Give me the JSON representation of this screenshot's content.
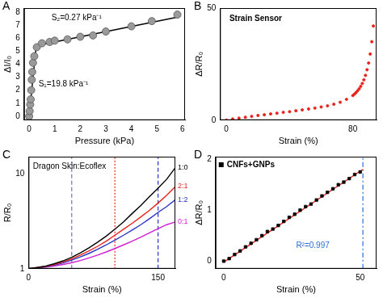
{
  "chart_data": [
    {
      "panel": "A",
      "type": "scatter",
      "x_label": "Pressure (kPa)",
      "y_label": "ΔI/I₀",
      "xlim": [
        -0.2,
        6.1
      ],
      "ylim": [
        -0.3,
        8.3
      ],
      "xticks": [
        0,
        1,
        2,
        3,
        4,
        5,
        6
      ],
      "yticks": [
        0,
        1,
        2,
        3,
        4,
        5,
        6,
        7,
        8
      ],
      "grid": false,
      "series": [
        {
          "type": "scatter",
          "marker": "circle",
          "color": "#9a9a9a",
          "x": [
            0,
            0.02,
            0.04,
            0.06,
            0.08,
            0.1,
            0.12,
            0.15,
            0.2,
            0.3,
            0.5,
            0.8,
            1.0,
            1.5,
            2.0,
            2.5,
            3.0,
            4.0,
            4.8,
            5.8
          ],
          "values": [
            0,
            0.4,
            0.9,
            1.3,
            2.0,
            2.8,
            3.4,
            4.1,
            4.6,
            5.3,
            5.6,
            5.7,
            5.8,
            5.9,
            6.1,
            6.2,
            6.5,
            6.9,
            7.3,
            7.8
          ]
        },
        {
          "type": "line",
          "color": "#000000",
          "line_style": "solid",
          "x": [
            0,
            0.28
          ],
          "values": [
            0,
            5.5
          ]
        },
        {
          "type": "line",
          "color": "#000000",
          "line_style": "solid",
          "x": [
            0.25,
            5.8
          ],
          "values": [
            5.4,
            7.6
          ]
        }
      ],
      "annotations": [
        {
          "text": "S₂=0.27 kPa⁻¹",
          "color": "#000000"
        },
        {
          "text": "S₁=19.8 kPa⁻¹",
          "color": "#000000"
        }
      ]
    },
    {
      "panel": "B",
      "type": "scatter",
      "x_label": "Strain (%)",
      "y_label": "ΔR/R₀",
      "xlim": [
        -4,
        95
      ],
      "ylim": [
        0,
        50
      ],
      "xticks": [
        0,
        80
      ],
      "yticks": [
        0,
        50
      ],
      "grid": false,
      "series": [
        {
          "type": "scatter",
          "marker": "circle",
          "color": "#e8221a",
          "x": [
            0,
            4,
            8,
            12,
            16,
            20,
            24,
            28,
            32,
            36,
            40,
            44,
            48,
            52,
            56,
            60,
            64,
            68,
            72,
            76,
            80,
            81,
            82,
            83,
            84,
            85,
            86,
            87,
            88,
            89,
            90,
            91,
            92,
            93
          ],
          "values": [
            0,
            0.5,
            0.9,
            1.3,
            1.7,
            2.1,
            2.4,
            2.8,
            3.1,
            3.5,
            3.8,
            4.2,
            4.6,
            5.0,
            5.4,
            5.9,
            6.4,
            7.1,
            8.0,
            9.3,
            11.0,
            11.6,
            12.3,
            13.1,
            14.0,
            15.1,
            16.4,
            18.0,
            20.0,
            22.5,
            25.5,
            29.5,
            35,
            42
          ]
        }
      ],
      "annotations": [
        {
          "text": "Strain Sensor",
          "color": "#000000"
        }
      ]
    },
    {
      "panel": "C",
      "type": "line",
      "x_label": "Strain (%)",
      "y_label": "R/R₀",
      "log": "y",
      "xlim": [
        0,
        170
      ],
      "ylim": [
        1,
        15
      ],
      "xticks": [
        0,
        150
      ],
      "yticks": [
        1,
        10
      ],
      "grid": false,
      "series": [
        {
          "name": "1:0",
          "color": "#000000",
          "x": [
            0,
            10,
            20,
            30,
            40,
            50,
            60,
            70,
            80,
            90,
            100,
            110,
            120,
            130,
            140,
            150,
            160,
            170
          ],
          "values": [
            1,
            1.03,
            1.07,
            1.13,
            1.21,
            1.32,
            1.47,
            1.66,
            1.9,
            2.2,
            2.6,
            3.1,
            3.8,
            4.6,
            5.7,
            7,
            8.7,
            11.5
          ]
        },
        {
          "name": "2:1",
          "color": "#e8221a",
          "x": [
            0,
            10,
            20,
            30,
            40,
            50,
            60,
            70,
            80,
            90,
            100,
            110,
            120,
            130,
            140,
            150,
            160,
            170
          ],
          "values": [
            1,
            1.03,
            1.06,
            1.11,
            1.18,
            1.27,
            1.39,
            1.54,
            1.72,
            1.95,
            2.25,
            2.6,
            3.0,
            3.5,
            4.1,
            4.9,
            5.9,
            7.3
          ]
        },
        {
          "name": "1:2",
          "color": "#2a35c8",
          "x": [
            0,
            10,
            20,
            30,
            40,
            50,
            60,
            70,
            80,
            90,
            100,
            110,
            120,
            130,
            140,
            150,
            160,
            170
          ],
          "values": [
            1,
            1.02,
            1.05,
            1.09,
            1.15,
            1.23,
            1.33,
            1.45,
            1.6,
            1.78,
            2.0,
            2.25,
            2.55,
            2.9,
            3.35,
            3.9,
            4.5,
            5.3
          ]
        },
        {
          "name": "0:1",
          "color": "#d21fd2",
          "x": [
            0,
            10,
            20,
            30,
            40,
            50,
            60,
            70,
            80,
            90,
            100,
            110,
            120,
            130,
            140,
            150,
            160,
            170
          ],
          "values": [
            1,
            1.02,
            1.04,
            1.07,
            1.11,
            1.16,
            1.22,
            1.3,
            1.39,
            1.5,
            1.63,
            1.78,
            1.95,
            2.15,
            2.38,
            2.63,
            2.9,
            3.1
          ]
        }
      ],
      "vlines": [
        {
          "x": 50,
          "color": "#7a6fc0",
          "line_style": "dashed"
        },
        {
          "x": 100,
          "color": "#e8221a",
          "line_style": "dotted"
        },
        {
          "x": 150,
          "color": "#2a35c8",
          "line_style": "dashed"
        }
      ],
      "annotations": [
        {
          "text": "Dragon Skin:Ecoflex",
          "color": "#000000"
        }
      ]
    },
    {
      "panel": "D",
      "type": "scatter",
      "x_label": "Strain (%)",
      "y_label": "ΔR/R₀",
      "legend": "upper left",
      "xlim": [
        -3,
        56
      ],
      "ylim": [
        -0.15,
        2.05
      ],
      "xticks": [
        0,
        50
      ],
      "yticks": [
        0,
        1,
        2
      ],
      "grid": false,
      "series": [
        {
          "name": "CNFs+GNPs",
          "type": "scatter",
          "marker": "square",
          "color": "#000000",
          "x": [
            0,
            2,
            4,
            6,
            8,
            10,
            12,
            14,
            16,
            18,
            20,
            22,
            24,
            26,
            28,
            30,
            32,
            34,
            36,
            38,
            40,
            42,
            44,
            46,
            48,
            50
          ],
          "values": [
            0,
            0.05,
            0.13,
            0.2,
            0.28,
            0.35,
            0.42,
            0.5,
            0.58,
            0.63,
            0.7,
            0.78,
            0.86,
            0.92,
            1.0,
            1.07,
            1.12,
            1.2,
            1.28,
            1.35,
            1.42,
            1.5,
            1.55,
            1.62,
            1.7,
            1.75
          ]
        },
        {
          "type": "line",
          "color": "#e8221a",
          "line_style": "solid",
          "x": [
            0,
            51
          ],
          "values": [
            -0.02,
            1.8
          ]
        }
      ],
      "vlines": [
        {
          "x": 51,
          "color": "#2a6fd8",
          "line_style": "dashdot"
        }
      ],
      "annotations": [
        {
          "text": "R²=0.997",
          "color": "#2a6fd8"
        }
      ]
    }
  ]
}
